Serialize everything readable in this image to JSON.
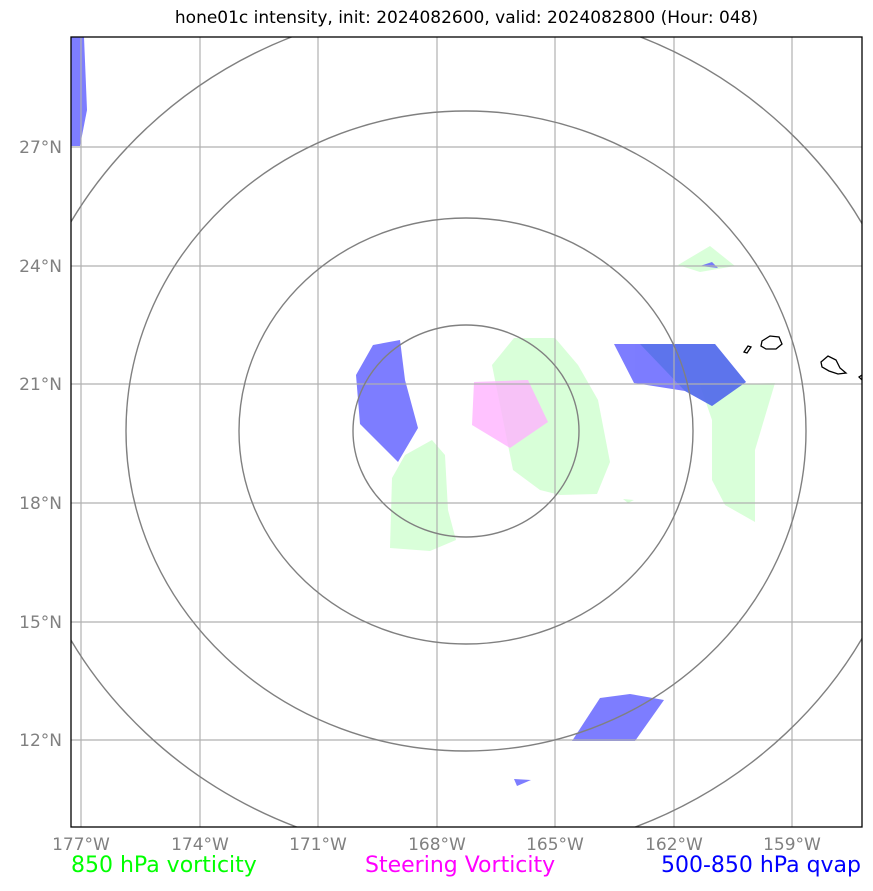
{
  "title": "hone01c intensity, init: 2024082600, valid: 2024082800 (Hour: 048)",
  "axes": {
    "lat_labels": [
      "27°N",
      "24°N",
      "21°N",
      "18°N",
      "15°N",
      "12°N"
    ],
    "lon_labels": [
      "177°W",
      "174°W",
      "171°W",
      "168°W",
      "165°W",
      "162°W",
      "159°W"
    ]
  },
  "legend": {
    "vort850": {
      "label": "850 hPa vorticity",
      "color": "#00ff00"
    },
    "steering": {
      "label": "Steering Vorticity",
      "color": "#ff00ff"
    },
    "qvap": {
      "label": "500-850 hPa qvap",
      "color": "#0000ff"
    }
  },
  "colors": {
    "grid": "#b0b0b0",
    "range_rings": "#808080",
    "coast": "#000000",
    "vort850_fill": "#ccffcc",
    "steering_fill": "#ffb3ff",
    "qvap_fill": "#6666ff"
  }
}
